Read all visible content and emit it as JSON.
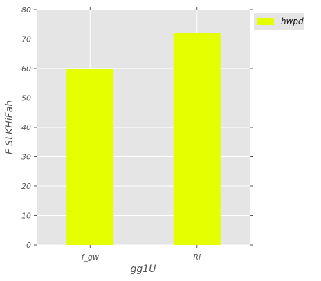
{
  "chart_data": {
    "type": "bar",
    "categories": [
      "f_gw",
      "Ri"
    ],
    "series": [
      {
        "name": "hwpd",
        "values": [
          60,
          72
        ],
        "color": "#e5ff00"
      }
    ],
    "xlabel": "gg1U",
    "ylabel": "F SLKHiFah",
    "ylim": [
      0,
      80
    ],
    "yticks": [
      0,
      10,
      20,
      30,
      40,
      50,
      60,
      70,
      80
    ],
    "grid": true,
    "legend": "outside-top-right",
    "plot_background": "#e5e5e5",
    "grid_color": "#ffffff"
  }
}
